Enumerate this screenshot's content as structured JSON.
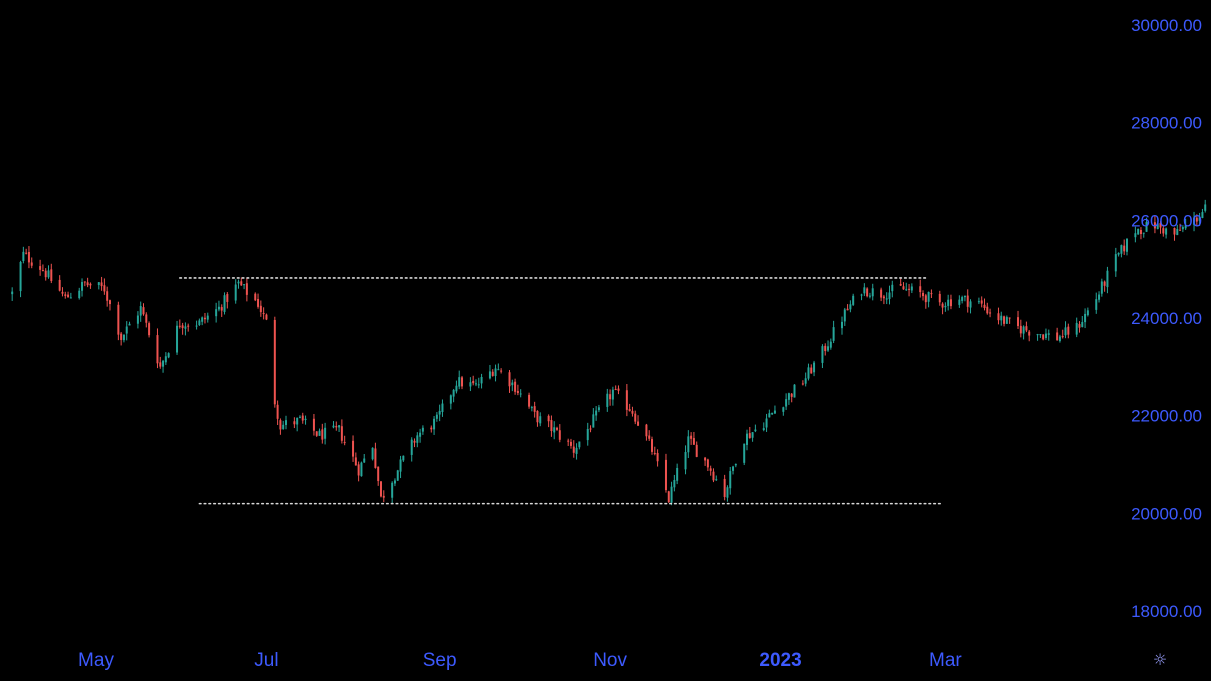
{
  "chart_data": {
    "type": "candlestick",
    "title": "",
    "xlabel": "",
    "ylabel": "",
    "ylim": [
      17800,
      30300
    ],
    "y_ticks": [
      "30000.00",
      "28000.00",
      "26000.00",
      "24000.00",
      "22000.00",
      "20000.00",
      "18000.00"
    ],
    "x_ticks": [
      "May",
      "Jul",
      "Sep",
      "Nov",
      "2023",
      "Mar"
    ],
    "x_tick_dates": [
      "2022-05-01",
      "2022-07-01",
      "2022-09-01",
      "2022-11-01",
      "2023-01-01",
      "2023-03-01"
    ],
    "date_range": [
      "2022-04-01",
      "2023-02-10"
    ],
    "grid": false,
    "annotations": [
      {
        "type": "horizontal_dotted_line",
        "value": 24820,
        "from": "2022-05-31",
        "to": "2023-02-22"
      },
      {
        "type": "horizontal_dotted_line",
        "value": 20200,
        "from": "2022-06-07",
        "to": "2023-02-28"
      }
    ],
    "close_path": [
      [
        "2022-04-01",
        24500
      ],
      [
        "2022-04-05",
        25300
      ],
      [
        "2022-04-12",
        25000
      ],
      [
        "2022-04-20",
        24400
      ],
      [
        "2022-04-27",
        24700
      ],
      [
        "2022-05-04",
        24600
      ],
      [
        "2022-05-10",
        23600
      ],
      [
        "2022-05-17",
        24200
      ],
      [
        "2022-05-24",
        23000
      ],
      [
        "2022-05-31",
        23900
      ],
      [
        "2022-06-07",
        23900
      ],
      [
        "2022-06-14",
        24200
      ],
      [
        "2022-06-21",
        24700
      ],
      [
        "2022-06-28",
        24300
      ],
      [
        "2022-07-01",
        23900
      ],
      [
        "2022-07-04",
        22300
      ],
      [
        "2022-07-06",
        21800
      ],
      [
        "2022-07-13",
        21900
      ],
      [
        "2022-07-20",
        21600
      ],
      [
        "2022-07-27",
        21700
      ],
      [
        "2022-08-03",
        20900
      ],
      [
        "2022-08-08",
        21400
      ],
      [
        "2022-08-11",
        20300
      ],
      [
        "2022-08-17",
        20900
      ],
      [
        "2022-08-24",
        21600
      ],
      [
        "2022-08-31",
        21900
      ],
      [
        "2022-09-07",
        22700
      ],
      [
        "2022-09-14",
        22600
      ],
      [
        "2022-09-21",
        23000
      ],
      [
        "2022-09-28",
        22600
      ],
      [
        "2022-10-05",
        22000
      ],
      [
        "2022-10-12",
        21700
      ],
      [
        "2022-10-19",
        21300
      ],
      [
        "2022-10-26",
        21900
      ],
      [
        "2022-11-02",
        22500
      ],
      [
        "2022-11-09",
        22100
      ],
      [
        "2022-11-16",
        21300
      ],
      [
        "2022-11-22",
        20300
      ],
      [
        "2022-11-29",
        21500
      ],
      [
        "2022-12-06",
        21000
      ],
      [
        "2022-12-12",
        20400
      ],
      [
        "2022-12-18",
        21500
      ],
      [
        "2022-12-25",
        21800
      ],
      [
        "2023-01-02",
        22300
      ],
      [
        "2023-01-09",
        22700
      ],
      [
        "2023-01-16",
        23300
      ],
      [
        "2023-01-23",
        24000
      ],
      [
        "2023-01-30",
        24600
      ],
      [
        "2023-02-06",
        24500
      ],
      [
        "2023-02-13",
        24600
      ],
      [
        "2023-02-20",
        24500
      ],
      [
        "2023-02-27",
        24300
      ],
      [
        "2023-03-06",
        24400
      ],
      [
        "2023-03-13",
        24300
      ],
      [
        "2023-03-20",
        24000
      ],
      [
        "2023-03-27",
        23800
      ],
      [
        "2023-04-03",
        23700
      ],
      [
        "2023-04-10",
        23600
      ],
      [
        "2023-04-17",
        23800
      ],
      [
        "2023-04-24",
        24400
      ],
      [
        "2023-05-01",
        25200
      ],
      [
        "2023-05-08",
        25800
      ],
      [
        "2023-05-15",
        25900
      ],
      [
        "2023-05-22",
        25700
      ],
      [
        "2023-05-29",
        26000
      ],
      [
        "2023-06-05",
        26400
      ],
      [
        "2023-06-12",
        26800
      ]
    ],
    "rising_color": "#26a69a",
    "falling_color": "#ef5350",
    "axis_text_color": "#3d5afe",
    "annotation_line_color": "#d8d8d8",
    "background": "#000000"
  },
  "ui": {
    "settings_icon": "gear-icon",
    "settings_glyph": "☼"
  }
}
